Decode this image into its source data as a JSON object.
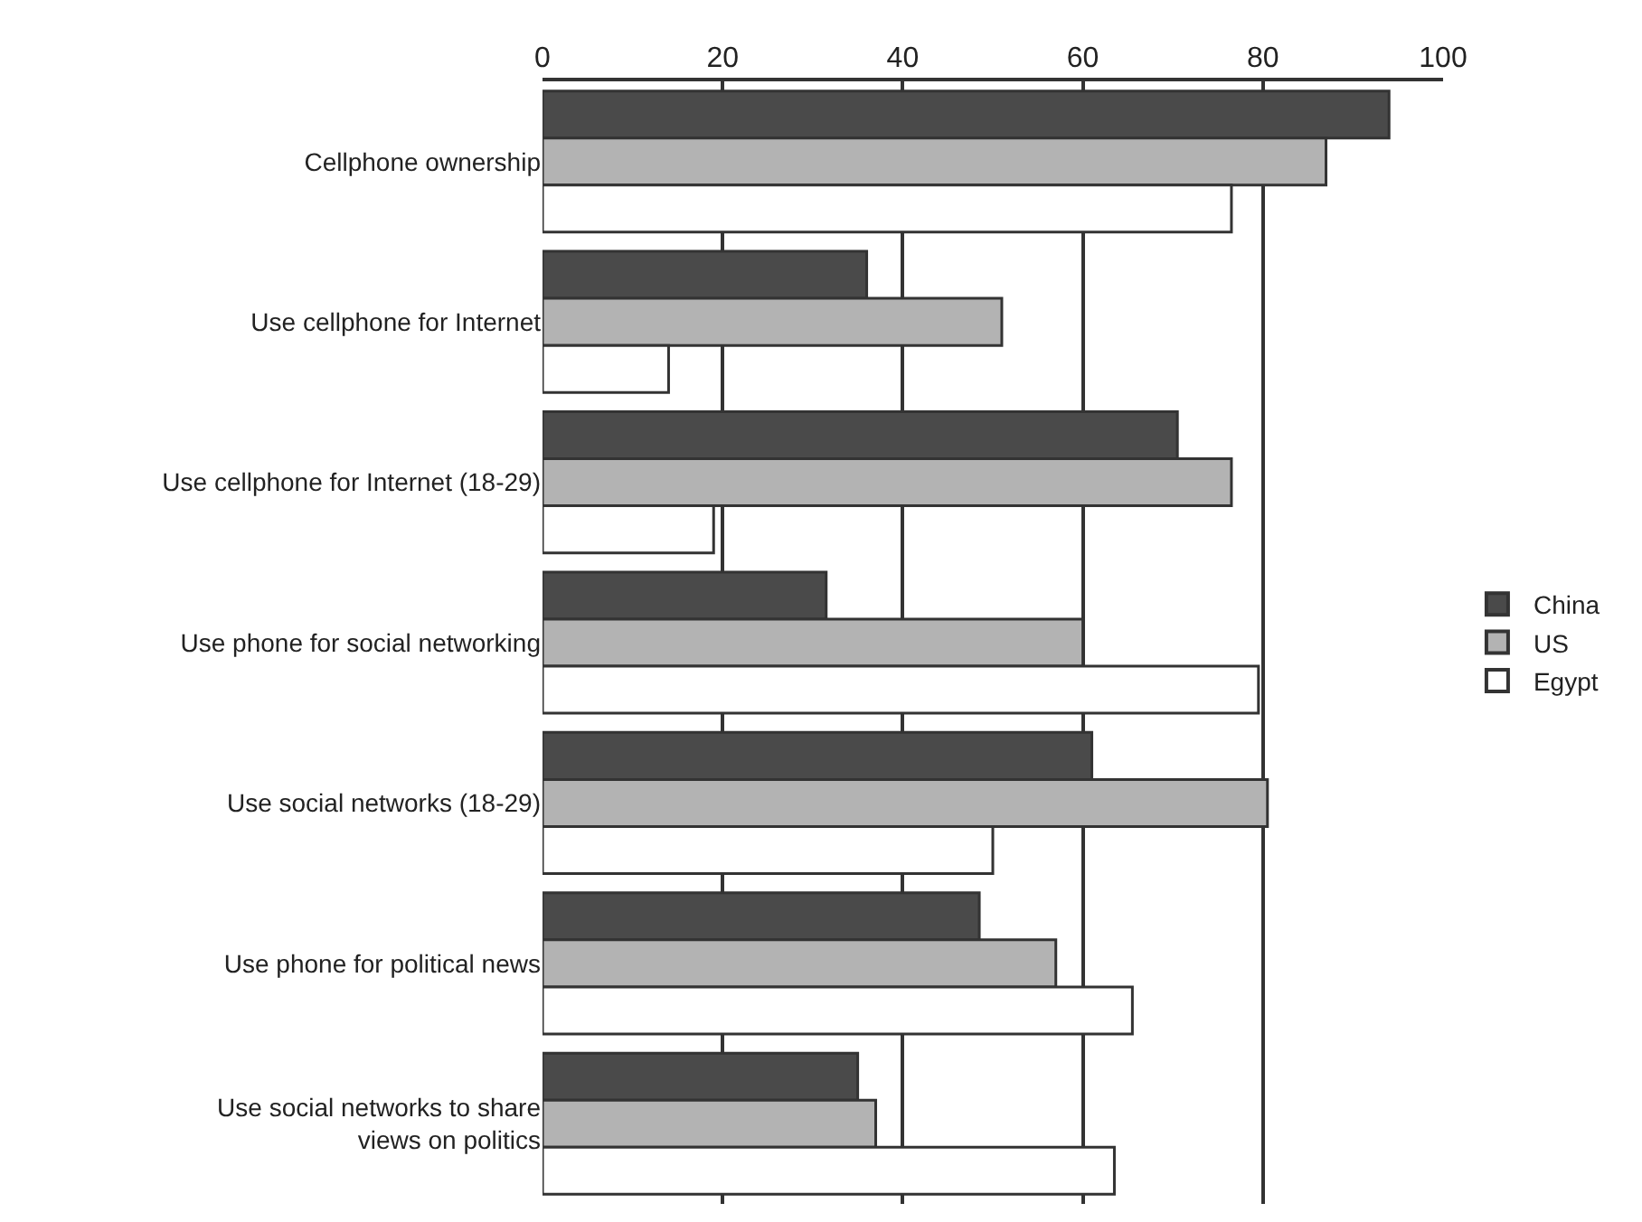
{
  "chart_data": {
    "type": "bar",
    "orientation": "horizontal",
    "categories": [
      "Cellphone ownership",
      "Use cellphone for Internet",
      "Use cellphone for Internet (18-29)",
      "Use phone for social networking",
      "Use social networks (18-29)",
      "Use phone for political news",
      "Use social networks to share\nviews on politics"
    ],
    "series": [
      {
        "name": "China",
        "color": "#4a4a4a",
        "values": [
          94,
          36,
          70.5,
          31.5,
          61,
          48.5,
          35
        ]
      },
      {
        "name": "US",
        "color": "#b3b3b3",
        "values": [
          87,
          51,
          76.5,
          60,
          80.5,
          57,
          37
        ]
      },
      {
        "name": "Egypt",
        "color": "#ffffff",
        "values": [
          76.5,
          14,
          19,
          79.5,
          50,
          65.5,
          63.5
        ]
      }
    ],
    "xlim": [
      0,
      100
    ],
    "xticks": [
      0,
      20,
      40,
      60,
      80,
      100
    ],
    "grid": "x",
    "legend": "right"
  }
}
